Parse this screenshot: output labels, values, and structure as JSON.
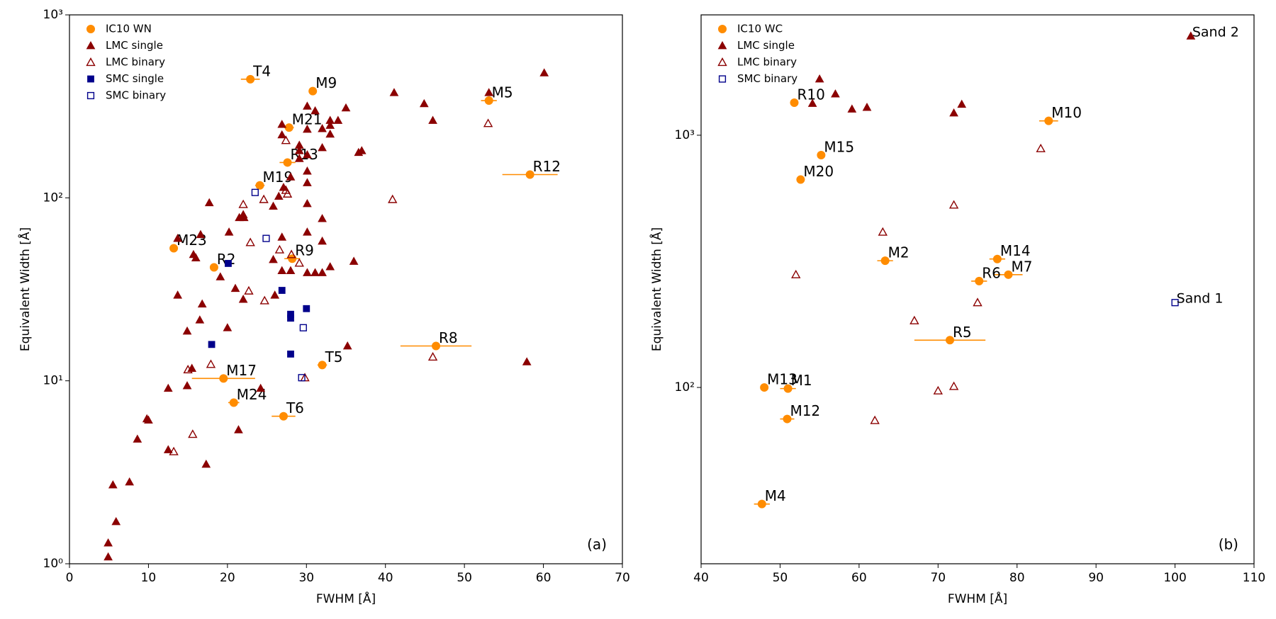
{
  "chart_data": [
    {
      "type": "scatter",
      "xlabel": "FWHM [Å]",
      "ylabel": "Equivalent Width [Å]",
      "log_y": true,
      "legend": "upper left",
      "panel_label": "(a)",
      "xlim": [
        0,
        70
      ],
      "xticks": [
        0,
        10,
        20,
        30,
        40,
        50,
        60,
        70
      ],
      "ylim": [
        1,
        1000
      ],
      "yticks": [
        {
          "value": 1,
          "label": "10⁰"
        },
        {
          "value": 10,
          "label": "10¹"
        },
        {
          "value": 100,
          "label": "10²"
        },
        {
          "value": 1000,
          "label": "10³"
        }
      ],
      "series": [
        {
          "name": "IC10 WN",
          "color": "#ff8c00",
          "marker": "circle",
          "filled": true,
          "labels": [
            "T4",
            "M9",
            "M5",
            "M21",
            "R13",
            "R12",
            "M19",
            "M23",
            "R2",
            "R9",
            "R8",
            "T5",
            "M17",
            "M24",
            "T6"
          ],
          "x": [
            22.9,
            30.8,
            53.1,
            27.8,
            27.6,
            58.3,
            24.1,
            13.2,
            18.3,
            28.2,
            46.4,
            32.0,
            19.5,
            20.8,
            27.1
          ],
          "values": [
            445,
            383,
            340,
            242,
            156,
            134,
            117,
            53,
            41.7,
            46.5,
            15.5,
            12.2,
            10.3,
            7.6,
            6.4
          ],
          "xerr": [
            1.2,
            0.5,
            1.0,
            0.6,
            1.0,
            3.5,
            0.6,
            0.5,
            0.5,
            1.0,
            4.5,
            0.6,
            4.0,
            0.7,
            1.5
          ]
        },
        {
          "name": "LMC single",
          "color": "#8b0000",
          "marker": "triangle",
          "filled": true,
          "x": [
            60.1,
            53.1,
            41.1,
            44.9,
            46.0,
            30.1,
            31.1,
            35.0,
            34.0,
            33.0,
            33.0,
            30.1,
            32.0,
            33.0,
            26.9,
            26.9,
            36.6,
            37.0,
            29.1,
            29.1,
            29.1,
            30.1,
            32.0,
            30.1,
            30.1,
            28.0,
            27.1,
            26.5,
            25.8,
            30.1,
            17.7,
            22.0,
            21.5,
            22.1,
            32.0,
            20.2,
            30.1,
            16.6,
            13.7,
            26.9,
            32.0,
            15.7,
            16.0,
            25.8,
            36.0,
            33.0,
            26.9,
            28.0,
            30.1,
            31.1,
            32.0,
            19.1,
            21.0,
            13.7,
            26.0,
            22.0,
            16.8,
            16.5,
            20.0,
            14.9,
            35.2,
            57.9,
            15.5,
            14.9,
            12.5,
            24.2,
            9.8,
            10.0,
            21.4,
            8.6,
            12.5,
            17.3,
            7.6,
            5.5,
            5.9,
            4.9,
            4.9
          ],
          "values": [
            482,
            376,
            376,
            327,
            265,
            317,
            299,
            310,
            265,
            265,
            249,
            237,
            239,
            223,
            252,
            221,
            177,
            181,
            194,
            181,
            164,
            172,
            188,
            140,
            121,
            130,
            114,
            102,
            90,
            93,
            94,
            81,
            78,
            78,
            77,
            65,
            65,
            63,
            60,
            61,
            58,
            49,
            47,
            46,
            45,
            42,
            40,
            40,
            39,
            39,
            39,
            37,
            32,
            29.4,
            29.4,
            27.9,
            26.3,
            21.5,
            19.5,
            18.7,
            15.5,
            12.7,
            11.7,
            9.4,
            9.1,
            9.1,
            6.2,
            6.1,
            5.4,
            4.8,
            4.2,
            3.5,
            2.8,
            2.7,
            1.7,
            1.3,
            1.09
          ]
        },
        {
          "name": "LMC binary",
          "color": "#8b0000",
          "marker": "triangle",
          "filled": false,
          "x": [
            53.0,
            27.4,
            40.9,
            24.6,
            22.0,
            27.4,
            27.6,
            22.9,
            26.6,
            28.1,
            29.1,
            22.7,
            24.7,
            46.0,
            17.9,
            15.0,
            29.8,
            15.6,
            13.2
          ],
          "values": [
            255,
            206,
            98,
            98,
            92,
            110,
            105,
            57,
            52,
            49,
            44,
            31,
            27.4,
            13.5,
            12.3,
            11.5,
            10.4,
            5.1,
            4.1
          ]
        },
        {
          "name": "SMC single",
          "color": "#00008b",
          "marker": "square",
          "filled": true,
          "x": [
            20.1,
            26.9,
            28.0,
            28.0,
            30.0,
            18.0,
            28.0
          ],
          "values": [
            43.8,
            31.2,
            23.1,
            22.0,
            24.8,
            15.8,
            14.0
          ]
        },
        {
          "name": "SMC binary",
          "color": "#00008b",
          "marker": "square",
          "filled": false,
          "x": [
            23.5,
            24.9,
            29.6,
            29.4
          ],
          "values": [
            107,
            60,
            19.5,
            10.4
          ]
        }
      ]
    },
    {
      "type": "scatter",
      "xlabel": "FWHM [Å]",
      "ylabel": "Equivalent Width [Å]",
      "log_y": true,
      "legend": "upper left",
      "panel_label": "(b)",
      "xlim": [
        40,
        110
      ],
      "xticks": [
        40,
        50,
        60,
        70,
        80,
        90,
        100,
        110
      ],
      "ylim": [
        20,
        3000
      ],
      "yticks": [
        {
          "value": 100,
          "label": "10²"
        },
        {
          "value": 1000,
          "label": "10³"
        }
      ],
      "series": [
        {
          "name": "IC10 WC",
          "color": "#ff8c00",
          "marker": "circle",
          "filled": true,
          "labels": [
            "R10",
            "M10",
            "M15",
            "M20",
            "M2",
            "M14",
            "M7",
            "R6",
            "R5",
            "M13",
            "M1",
            "M12",
            "M4"
          ],
          "x": [
            51.8,
            84.0,
            55.2,
            52.6,
            63.3,
            77.5,
            78.9,
            75.2,
            71.5,
            48.0,
            51.0,
            50.9,
            47.7
          ],
          "values": [
            1346,
            1140,
            834,
            667,
            318,
            323,
            280,
            264,
            154,
            100,
            99,
            75,
            34.5
          ],
          "xerr": [
            0.4,
            1.2,
            0.4,
            0.4,
            1.0,
            1.0,
            1.8,
            1.0,
            4.5,
            0.5,
            1.0,
            0.9,
            1.0
          ]
        },
        {
          "name": "LMC single",
          "color": "#8b0000",
          "marker": "triangle",
          "filled": true,
          "x": [
            102.0,
            55.0,
            57.0,
            54.1,
            59.1,
            61.0,
            73.0,
            72.0
          ],
          "values": [
            2473,
            1671,
            1458,
            1337,
            1270,
            1290,
            1327,
            1225
          ]
        },
        {
          "name": "LMC binary",
          "color": "#8b0000",
          "marker": "triangle",
          "filled": false,
          "x": [
            83.0,
            72.0,
            63.0,
            52.0,
            75.0,
            67.0,
            70.0,
            72.0,
            62.0
          ],
          "values": [
            885,
            529,
            413,
            280,
            217,
            184,
            97,
            101,
            74
          ]
        },
        {
          "name": "SMC binary",
          "color": "#00008b",
          "marker": "square",
          "filled": false,
          "x": [
            100.0
          ],
          "values": [
            217
          ]
        }
      ],
      "annotations": [
        {
          "text": "Sand 2",
          "x": 102.0,
          "y": 2473
        },
        {
          "text": "Sand 1",
          "x": 100.0,
          "y": 217
        }
      ]
    }
  ]
}
